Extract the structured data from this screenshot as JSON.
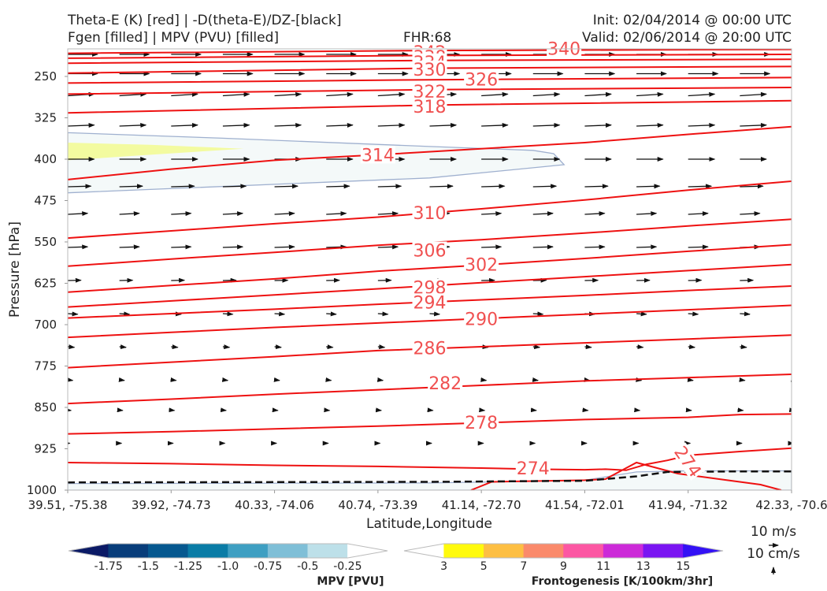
{
  "header": {
    "line1_left": "Theta-E (K) [red] | -D(theta-E)/DZ-[black]",
    "line2_left": "Fgen [filled] | MPV (PVU) [filled]",
    "fhr": "FHR:68",
    "init": "Init: 02/04/2014 @ 00:00 UTC",
    "valid": "Valid: 02/06/2014 @ 20:00 UTC"
  },
  "chart_data": {
    "type": "contour-cross-section",
    "ylabel": "Pressure [hPa]",
    "xlabel": "Latitude,Longitude",
    "y_axis": {
      "inverted": true,
      "range": [
        1000,
        200
      ],
      "ticks": [
        250,
        325,
        400,
        475,
        550,
        625,
        700,
        775,
        850,
        925,
        1000
      ]
    },
    "x_ticks": [
      "39.51, -75.38",
      "39.92, -74.73",
      "40.33, -74.06",
      "40.74, -73.39",
      "41.14, -72.70",
      "41.54, -72.01",
      "41.94, -71.32",
      "42.33, -70.6"
    ],
    "x_range": [
      0,
      7
    ],
    "theta_e_contours": {
      "color": "#ee1111",
      "lines": [
        {
          "level": 342,
          "points": [
            [
              0,
              208
            ],
            [
              3.5,
              203
            ],
            [
              7,
              201
            ]
          ]
        },
        {
          "level": 338,
          "points": [
            [
              0,
              217
            ],
            [
              3.5,
              212
            ],
            [
              7,
              210
            ]
          ]
        },
        {
          "level": 334,
          "points": [
            [
              0,
              226
            ],
            [
              3.5,
              221
            ],
            [
              7,
              219
            ]
          ]
        },
        {
          "level": 330,
          "points": [
            [
              0,
              244
            ],
            [
              3.5,
              235
            ],
            [
              7,
              232
            ]
          ]
        },
        {
          "level": 326,
          "points": [
            [
              0,
              262
            ],
            [
              3.5,
              256
            ],
            [
              7,
              252
            ]
          ]
        },
        {
          "level": 322,
          "points": [
            [
              0,
              282
            ],
            [
              3.5,
              274
            ],
            [
              7,
              270
            ]
          ]
        },
        {
          "level": 318,
          "points": [
            [
              0,
              316
            ],
            [
              3.5,
              302
            ],
            [
              7,
              294
            ]
          ]
        },
        {
          "level": 314,
          "points": [
            [
              0,
              437
            ],
            [
              1,
              418
            ],
            [
              2,
              402
            ],
            [
              3,
              392
            ],
            [
              4,
              381
            ],
            [
              5,
              370
            ],
            [
              6,
              355
            ],
            [
              7,
              341
            ]
          ]
        },
        {
          "level": 310,
          "points": [
            [
              0,
              543
            ],
            [
              1,
              530
            ],
            [
              2,
              517
            ],
            [
              3,
              505
            ],
            [
              4,
              490
            ],
            [
              5,
              474
            ],
            [
              6,
              456
            ],
            [
              7,
              440
            ]
          ]
        },
        {
          "level": 306,
          "points": [
            [
              0,
              594
            ],
            [
              1,
              581
            ],
            [
              2,
              569
            ],
            [
              3,
              556
            ],
            [
              4,
              546
            ],
            [
              5,
              534
            ],
            [
              6,
              521
            ],
            [
              7,
              509
            ]
          ]
        },
        {
          "level": 302,
          "points": [
            [
              0,
              641
            ],
            [
              1,
              629
            ],
            [
              2,
              617
            ],
            [
              3,
              603
            ],
            [
              4,
              592
            ],
            [
              5,
              580
            ],
            [
              6,
              567
            ],
            [
              7,
              555
            ]
          ]
        },
        {
          "level": 298,
          "points": [
            [
              0,
              668
            ],
            [
              1,
              657
            ],
            [
              2,
              646
            ],
            [
              3,
              635
            ],
            [
              4,
              624
            ],
            [
              5,
              613
            ],
            [
              6,
              602
            ],
            [
              7,
              591
            ]
          ]
        },
        {
          "level": 294,
          "points": [
            [
              0,
              688
            ],
            [
              1,
              680
            ],
            [
              2,
              672
            ],
            [
              3,
              663
            ],
            [
              4,
              655
            ],
            [
              5,
              647
            ],
            [
              6,
              638
            ],
            [
              7,
              630
            ]
          ]
        },
        {
          "level": 290,
          "points": [
            [
              0,
              723
            ],
            [
              1,
              714
            ],
            [
              2,
              705
            ],
            [
              3,
              697
            ],
            [
              4,
              689
            ],
            [
              5,
              681
            ],
            [
              6,
              673
            ],
            [
              7,
              665
            ]
          ]
        },
        {
          "level": 286,
          "points": [
            [
              0,
              778
            ],
            [
              1,
              768
            ],
            [
              2,
              758
            ],
            [
              3,
              747
            ],
            [
              4,
              740
            ],
            [
              5,
              733
            ],
            [
              6,
              726
            ],
            [
              7,
              719
            ]
          ]
        },
        {
          "level": 282,
          "points": [
            [
              0,
              843
            ],
            [
              1,
              835
            ],
            [
              2,
              826
            ],
            [
              3,
              818
            ],
            [
              4,
              810
            ],
            [
              5,
              802
            ],
            [
              6,
              796
            ],
            [
              7,
              790
            ]
          ]
        },
        {
          "level": 278,
          "points": [
            [
              0,
              898
            ],
            [
              1,
              894
            ],
            [
              2,
              889
            ],
            [
              3,
              884
            ],
            [
              4,
              878
            ],
            [
              5,
              872
            ],
            [
              5.5,
              870
            ],
            [
              6,
              868
            ],
            [
              6.5,
              863
            ],
            [
              7,
              862
            ]
          ]
        },
        {
          "level": 274,
          "points": [
            [
              0,
              950
            ],
            [
              1,
              952
            ],
            [
              2,
              955
            ],
            [
              3,
              957
            ],
            [
              4,
              960
            ],
            [
              4.5,
              962
            ],
            [
              5,
              963
            ],
            [
              5.2,
              962
            ],
            [
              5.4,
              964
            ],
            [
              5.6,
              953
            ],
            [
              5.8,
              946
            ],
            [
              6,
              937
            ],
            [
              6.5,
              930
            ],
            [
              7,
              924
            ]
          ]
        },
        {
          "level": 274,
          "points": [
            [
              3.9,
              1000
            ],
            [
              4.1,
              985
            ],
            [
              5,
              982
            ],
            [
              5.2,
              980
            ],
            [
              5.5,
              950
            ],
            [
              5.9,
              970
            ],
            [
              6.1,
              975
            ],
            [
              6.3,
              980
            ],
            [
              6.7,
              990
            ],
            [
              6.9,
              1000
            ]
          ]
        }
      ],
      "labels": [
        {
          "text": "342",
          "x": 3.5,
          "y": 206
        },
        {
          "text": "340",
          "x": 4.8,
          "y": 199
        },
        {
          "text": "338",
          "x": 3.5,
          "y": 214
        },
        {
          "text": "334",
          "x": 3.5,
          "y": 224
        },
        {
          "text": "330",
          "x": 3.5,
          "y": 237
        },
        {
          "text": "326",
          "x": 4.0,
          "y": 255
        },
        {
          "text": "322",
          "x": 3.5,
          "y": 277
        },
        {
          "text": "318",
          "x": 3.5,
          "y": 304
        },
        {
          "text": "314",
          "x": 3.0,
          "y": 392
        },
        {
          "text": "310",
          "x": 3.5,
          "y": 497
        },
        {
          "text": "306",
          "x": 3.5,
          "y": 565
        },
        {
          "text": "302",
          "x": 4.0,
          "y": 591
        },
        {
          "text": "298",
          "x": 3.5,
          "y": 632
        },
        {
          "text": "294",
          "x": 3.5,
          "y": 659
        },
        {
          "text": "290",
          "x": 4.0,
          "y": 689
        },
        {
          "text": "286",
          "x": 3.5,
          "y": 742
        },
        {
          "text": "282",
          "x": 3.65,
          "y": 806
        },
        {
          "text": "278",
          "x": 4.0,
          "y": 877
        },
        {
          "text": "274",
          "x": 4.5,
          "y": 960
        },
        {
          "text": "274",
          "x": 6.0,
          "y": 948,
          "rotate": 55
        }
      ]
    },
    "stability_contour": {
      "color": "#111111",
      "style": "dashed",
      "points": [
        [
          0,
          986
        ],
        [
          3.5,
          985
        ],
        [
          5,
          983
        ],
        [
          5.5,
          975
        ],
        [
          5.8,
          967
        ],
        [
          6.5,
          966
        ],
        [
          7,
          966
        ]
      ]
    },
    "mpv_regions": [
      {
        "fill": "#f4f9f9",
        "edge": "#9fb0cf",
        "points": [
          [
            0,
            352
          ],
          [
            1.5,
            362
          ],
          [
            3.5,
            377
          ],
          [
            4.5,
            384
          ],
          [
            4.7,
            390
          ],
          [
            4.8,
            410
          ],
          [
            3.5,
            434
          ],
          [
            0,
            461
          ]
        ]
      },
      {
        "fill": "#f4f9f9",
        "edge": "#9fb0cf",
        "points": [
          [
            0,
            1000
          ],
          [
            0,
            988
          ],
          [
            3.5,
            987
          ],
          [
            5,
            982
          ],
          [
            5.5,
            967
          ],
          [
            6,
            965
          ],
          [
            7,
            965
          ],
          [
            7,
            1000
          ]
        ]
      }
    ],
    "fgen_regions": [
      {
        "fill": "#f3fba0",
        "points": [
          [
            0,
            370
          ],
          [
            0.8,
            374
          ],
          [
            1.7,
            381
          ],
          [
            0.8,
            392
          ],
          [
            0,
            402
          ]
        ]
      }
    ],
    "wind_vectors": {
      "color": "#111111",
      "x_step": 0.5,
      "levels": [
        {
          "p": 210,
          "u": 9,
          "v": 0
        },
        {
          "p": 245,
          "u": 9,
          "v": 0
        },
        {
          "p": 285,
          "u": 8,
          "v": 0.5
        },
        {
          "p": 340,
          "u": 8,
          "v": 0.3
        },
        {
          "p": 400,
          "u": 8,
          "v": 0
        },
        {
          "p": 450,
          "u": 7,
          "v": 0.2
        },
        {
          "p": 500,
          "u": 6,
          "v": 0.3
        },
        {
          "p": 560,
          "u": 6,
          "v": 0.2
        },
        {
          "p": 620,
          "u": 4,
          "v": 0.1
        },
        {
          "p": 680,
          "u": 3,
          "v": -0.2
        },
        {
          "p": 740,
          "u": 2,
          "v": -0.2
        },
        {
          "p": 800,
          "u": 1.5,
          "v": -0.2
        },
        {
          "p": 855,
          "u": 1,
          "v": -0.1
        },
        {
          "p": 915,
          "u": 0.6,
          "v": 0
        }
      ]
    },
    "mpv_colorbar": {
      "label": "MPV [PVU]",
      "ticks": [
        "-1.75",
        "-1.5",
        "-1.25",
        "-1.0",
        "-0.75",
        "-0.5",
        "-0.25"
      ],
      "colors": [
        "#0b1a66",
        "#083d7a",
        "#06588f",
        "#0a7ca6",
        "#3e9fc2",
        "#7fbfd7",
        "#bde0e9",
        "#ffffff"
      ]
    },
    "fgen_colorbar": {
      "label": "Frontogenesis [K/100km/3hr]",
      "ticks": [
        "3",
        "5",
        "7",
        "9",
        "11",
        "13",
        "15"
      ],
      "colors": [
        "#ffffff",
        "#fffa0d",
        "#fdbf43",
        "#fa8a6b",
        "#fc57a3",
        "#cc2ad8",
        "#7a15f2",
        "#3311f5"
      ]
    },
    "vector_key": {
      "label1": "10 m/s",
      "label2": "10 cm/s"
    }
  }
}
